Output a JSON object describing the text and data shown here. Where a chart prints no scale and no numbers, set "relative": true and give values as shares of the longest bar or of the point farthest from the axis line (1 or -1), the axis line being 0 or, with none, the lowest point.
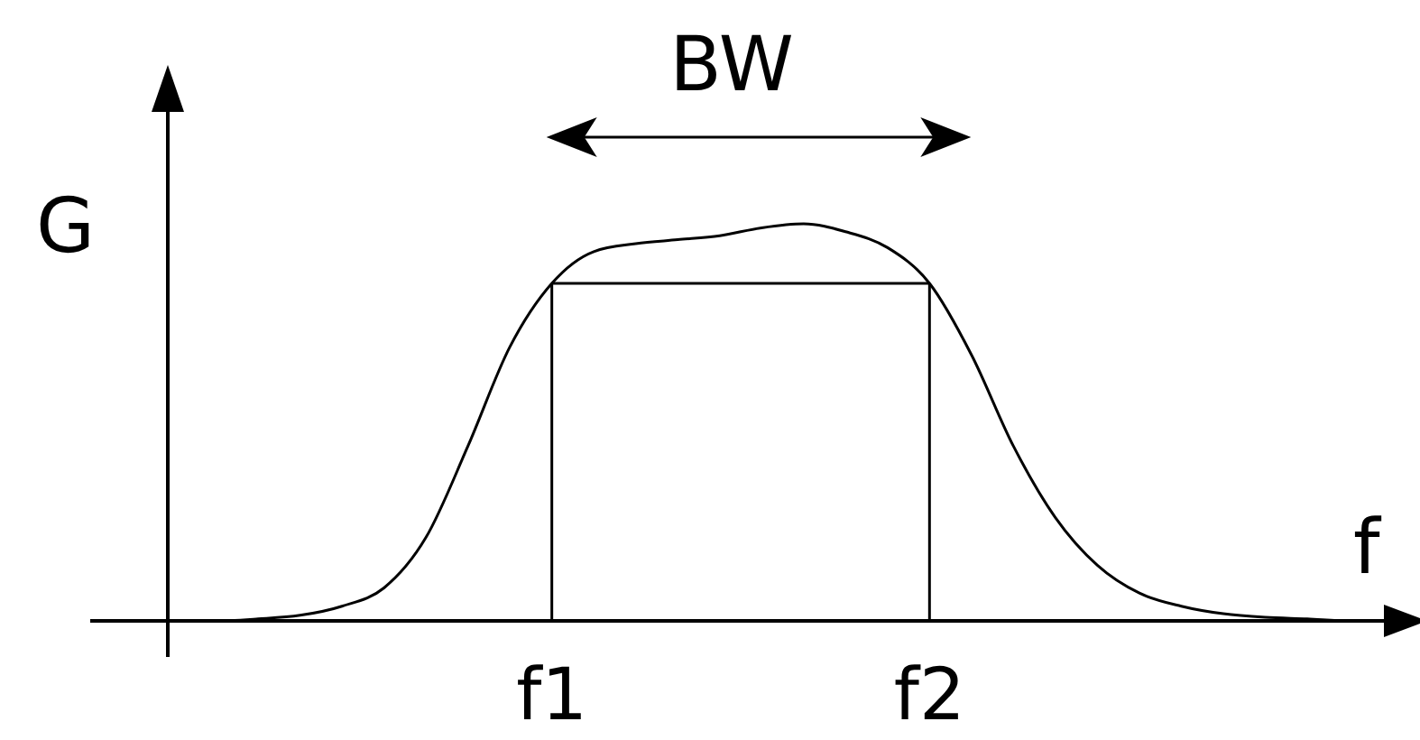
{
  "chart_data": {
    "type": "line",
    "relative": true,
    "xlabel": "f",
    "ylabel": "G",
    "annotations": [
      "BW"
    ],
    "categories": [
      null,
      null,
      null,
      null,
      null,
      null,
      null,
      null,
      null,
      null,
      null,
      "f1",
      null,
      null,
      null,
      null,
      null,
      null,
      null,
      null,
      "f2",
      null,
      null,
      null,
      null,
      null,
      null,
      null,
      null,
      null,
      null,
      null
    ],
    "series": [
      {
        "color": "#000000",
        "values": [
          0,
          0,
          0,
          0,
          0.005,
          0.014,
          0.037,
          0.083,
          0.21,
          0.44,
          0.69,
          0.85,
          0.93,
          0.95,
          0.96,
          0.97,
          0.99,
          1,
          0.98,
          0.94,
          0.85,
          0.67,
          0.44,
          0.26,
          0.14,
          0.07,
          0.037,
          0.018,
          0.009,
          0.005,
          0,
          0
        ]
      }
    ],
    "ref_lines": [
      {
        "axis": "x",
        "value": "f1"
      },
      {
        "axis": "x",
        "value": "f2"
      },
      {
        "axis": "y",
        "value": 0.85
      }
    ],
    "marker": "none",
    "line_style": "solid",
    "grid": false,
    "legend": false
  }
}
